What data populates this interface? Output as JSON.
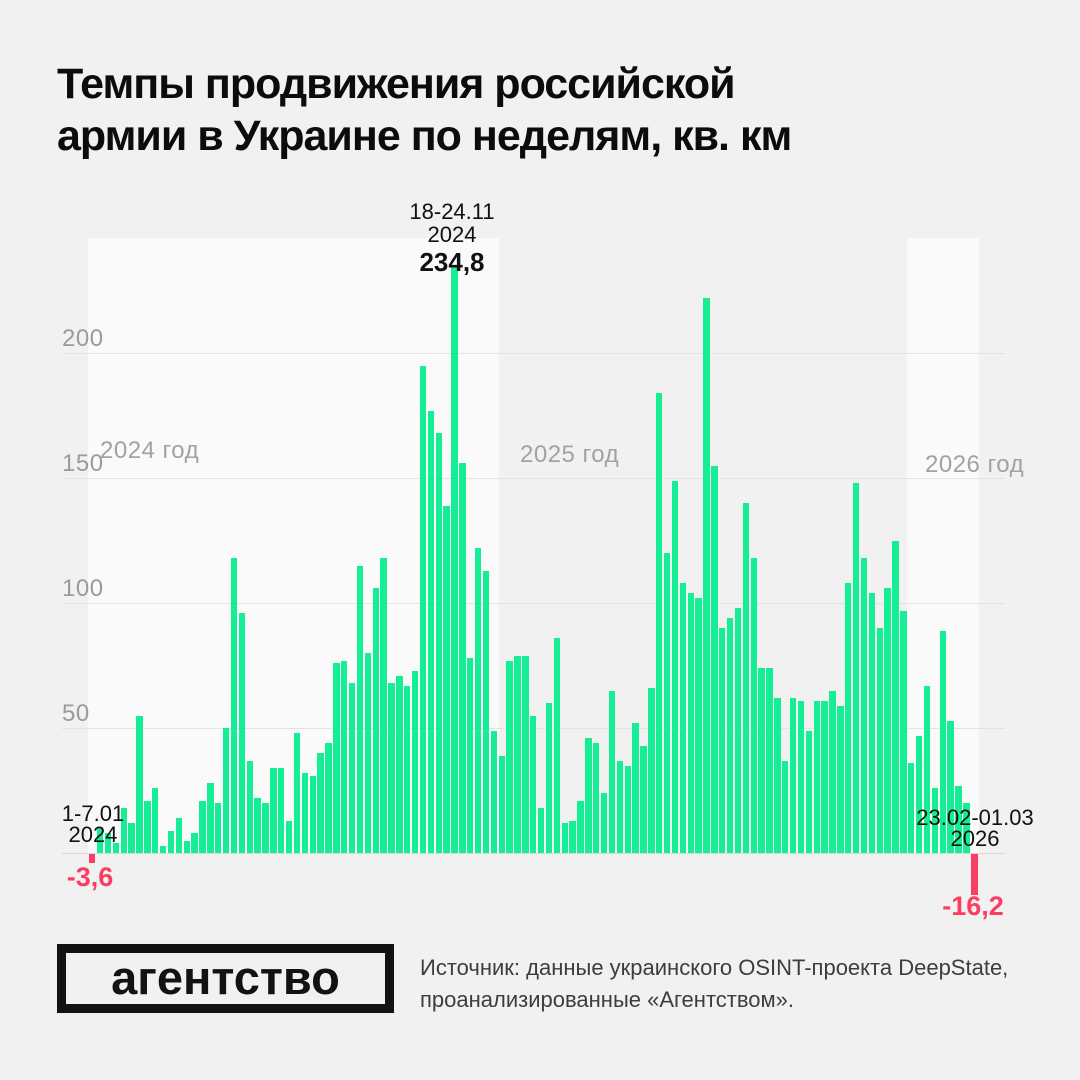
{
  "title_line1": "Темпы продвижения российской",
  "title_line2": "армии в Украине по неделям, кв. км",
  "year_labels": [
    {
      "label": "2024 год"
    },
    {
      "label": "2025 год"
    },
    {
      "label": "2026 год"
    }
  ],
  "y_axis": {
    "ticks": [
      200,
      150,
      100,
      50
    ]
  },
  "annotations": {
    "first": {
      "date_line1": "1-7.01",
      "date_line2": "2024",
      "value_label": "-3,6"
    },
    "peak": {
      "date_line1": "18-24.11",
      "date_line2": "2024",
      "value_label": "234,8"
    },
    "last": {
      "date_line1": "23.02-01.03",
      "date_line2": "2026",
      "value_label": "-16,2"
    }
  },
  "colors": {
    "positive_bar": "#15ee94",
    "negative_bar": "#fa3e62",
    "page_bg": "#f1f1f1",
    "panel_bg": "#fafafa",
    "grid": "#e3e3e2",
    "label_gray": "#9b9b9b",
    "title_text": "#0c0c0c"
  },
  "logo_text": "агентство",
  "source_lines": [
    "Источник: данные украинского OSINT-проекта DeepState,",
    "проанализированные «Агентством»."
  ],
  "chart_data": {
    "type": "bar",
    "title": "Темпы продвижения российской армии в Украине по неделям, кв. км",
    "unit": "кв. км в неделю",
    "x_start_week": "1-7.01.2024",
    "x_end_week": "23.02-01.03.2026",
    "first_value": -3.6,
    "last_value": -16.2,
    "peak": {
      "week": "18-24.11.2024",
      "value": 234.8
    },
    "ylim": [
      -20,
      240
    ],
    "grid": true,
    "segments": [
      {
        "year": "2024",
        "weeks": 52
      },
      {
        "year": "2025",
        "weeks": 52
      },
      {
        "year": "2026",
        "weeks": 9
      }
    ],
    "values": [
      -3.6,
      10,
      8,
      4,
      18,
      12,
      55,
      21,
      26,
      3,
      9,
      14,
      5,
      8,
      21,
      28,
      20,
      50,
      118,
      96,
      37,
      22,
      20,
      34,
      34,
      13,
      48,
      32,
      31,
      40,
      44,
      76,
      77,
      68,
      115,
      80,
      106,
      118,
      68,
      71,
      67,
      73,
      195,
      177,
      168,
      139,
      234.8,
      156,
      78,
      122,
      113,
      49,
      39,
      77,
      79,
      79,
      55,
      18,
      60,
      86,
      12,
      13,
      21,
      46,
      44,
      24,
      65,
      37,
      35,
      52,
      43,
      66,
      184,
      120,
      149,
      108,
      104,
      102,
      222,
      155,
      90,
      94,
      98,
      140,
      118,
      74,
      74,
      62,
      37,
      62,
      61,
      49,
      61,
      61,
      65,
      59,
      108,
      148,
      118,
      104,
      90,
      106,
      125,
      97,
      36,
      47,
      67,
      26,
      89,
      53,
      27,
      20,
      -16.2
    ]
  }
}
